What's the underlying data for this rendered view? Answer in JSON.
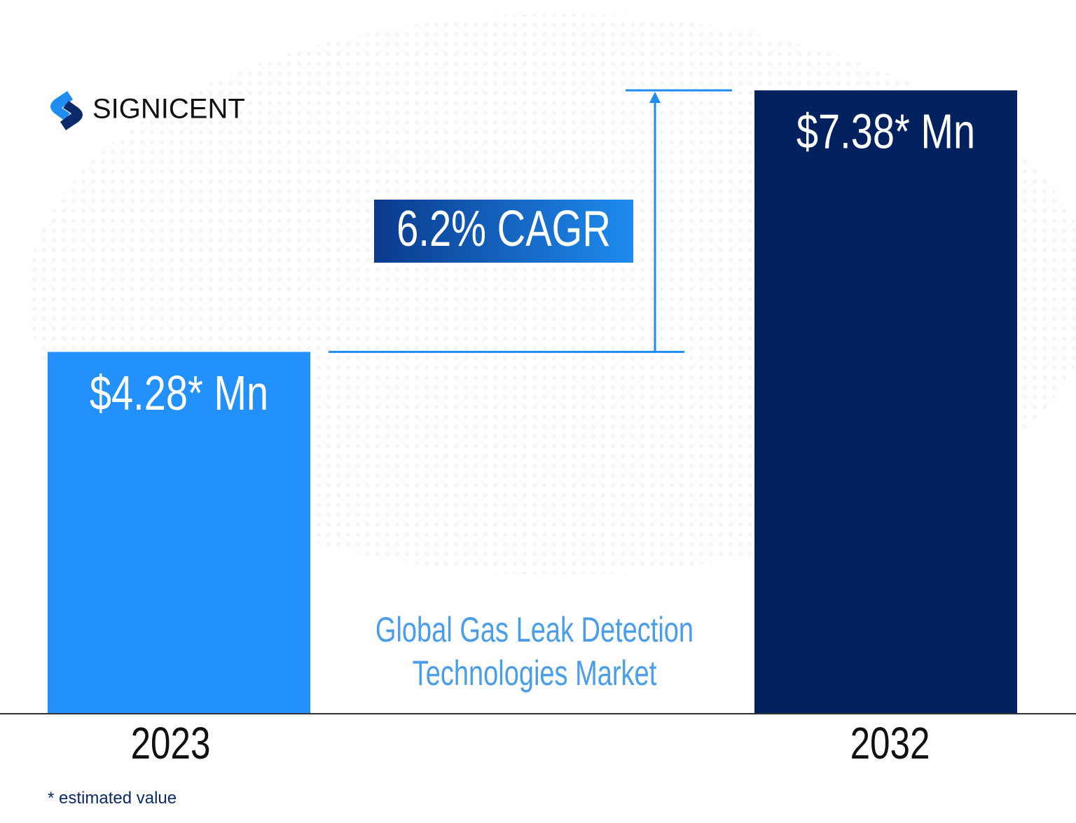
{
  "chart_data": {
    "type": "bar",
    "brand": "SIGNICENT",
    "title": "Global Gas Leak Detection Technologies Market",
    "categories": [
      "2023",
      "2032"
    ],
    "values": [
      4.28,
      7.38
    ],
    "value_labels": [
      "$4.28* Mn",
      "$7.38* Mn"
    ],
    "colors": [
      "#2291fb",
      "#02215f"
    ],
    "annotation": "6.2% CAGR",
    "footnote": "* estimated value"
  }
}
